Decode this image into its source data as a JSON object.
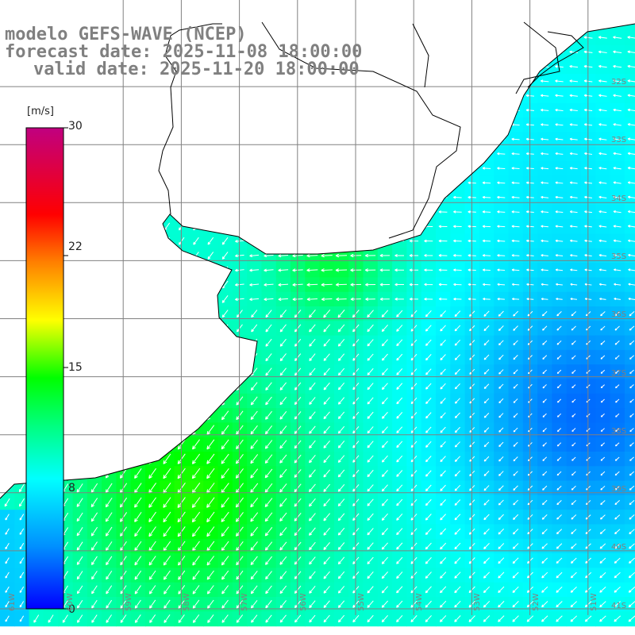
{
  "title": {
    "line1": "modelo GEFS-WAVE (NCEP)",
    "line2": "forecast date: 2025-11-08 18:00:00",
    "line3": "valid date: 2025-11-20 18:00:00"
  },
  "colorbar": {
    "units": "[m/s]",
    "tick_labels": [
      "30",
      "22",
      "15",
      "8",
      "0"
    ],
    "tick_values": [
      30,
      22,
      15,
      8,
      0
    ],
    "range": [
      0,
      30
    ],
    "colors": [
      "#0000ff",
      "#0090ff",
      "#00ffff",
      "#00ff80",
      "#00ff00",
      "#ffff00",
      "#ff8000",
      "#ff0000",
      "#c00080"
    ]
  },
  "map": {
    "lat_labels": [
      {
        "text": "32S",
        "value": -32
      },
      {
        "text": "33S",
        "value": -33
      },
      {
        "text": "34S",
        "value": -34
      },
      {
        "text": "35S",
        "value": -35
      },
      {
        "text": "36S",
        "value": -36
      },
      {
        "text": "37S",
        "value": -37
      },
      {
        "text": "38S",
        "value": -38
      },
      {
        "text": "39S",
        "value": -39
      },
      {
        "text": "40S",
        "value": -40
      },
      {
        "text": "41S",
        "value": -41
      }
    ],
    "lon_labels": [
      {
        "text": "61W",
        "value": -61
      },
      {
        "text": "60W",
        "value": -60
      },
      {
        "text": "59W",
        "value": -59
      },
      {
        "text": "58W",
        "value": -58
      },
      {
        "text": "57W",
        "value": -57
      },
      {
        "text": "56W",
        "value": -56
      },
      {
        "text": "55W",
        "value": -55
      },
      {
        "text": "54W",
        "value": -54
      },
      {
        "text": "53W",
        "value": -53
      },
      {
        "text": "52W",
        "value": -52
      },
      {
        "text": "51W",
        "value": -51
      }
    ],
    "land_color": "#ffffff",
    "coastline_color": "#000000",
    "grid_color": "#808080"
  }
}
